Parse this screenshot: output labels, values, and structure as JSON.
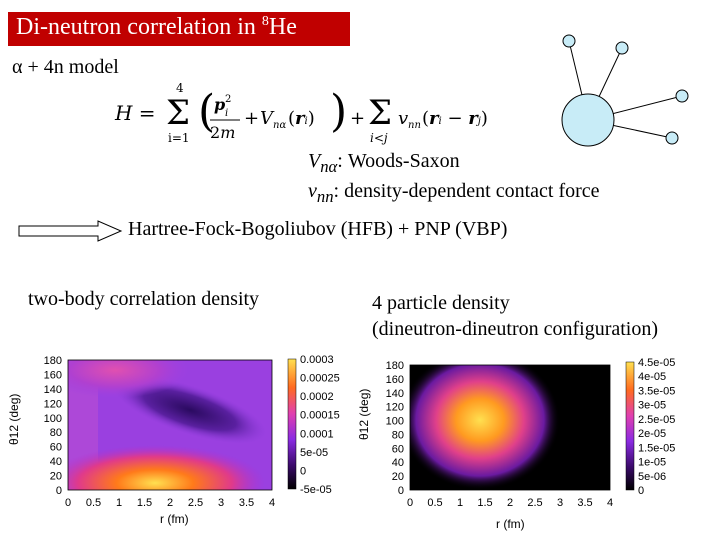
{
  "title": {
    "main": "Di-neutron correlation in ",
    "sup": "8",
    "tail": "He"
  },
  "model": "α + 4n model",
  "hamiltonian": {
    "lhs": "H =",
    "sum_top": "4",
    "sum_bottom": "i=1",
    "sum2_bottom": "i<j"
  },
  "potentials": {
    "vna_sym": "V",
    "vna_sub": "nα",
    "vna_desc": ": Woods-Saxon",
    "vnn_sym": "v",
    "vnn_sub": "nn",
    "vnn_desc": ": density-dependent contact force"
  },
  "method": "Hartree-Fock-Bogoliubov (HFB) + PNP (VBP)",
  "left_label": "two-body correlation density",
  "right_label_line1": "4 particle density",
  "right_label_line2": "(dineutron-dineutron configuration)",
  "colors": {
    "title_bg": "#c00000",
    "core": "#c8ecf7"
  },
  "chart_data": [
    {
      "type": "heatmap",
      "title": "",
      "xlabel": "r (fm)",
      "ylabel": "θ12 (deg)",
      "xlim": [
        0,
        4
      ],
      "ylim": [
        0,
        180
      ],
      "xticks": [
        "0",
        "0.5",
        "1",
        "1.5",
        "2",
        "2.5",
        "3",
        "3.5",
        "4"
      ],
      "yticks": [
        "0",
        "20",
        "40",
        "60",
        "80",
        "100",
        "120",
        "140",
        "160",
        "180"
      ],
      "colorbar_ticks": [
        "-5e-05",
        "0",
        "5e-05",
        "0.0001",
        "0.00015",
        "0.0002",
        "0.00025",
        "0.0003"
      ],
      "colorbar_range": [
        -5e-05,
        0.0003
      ],
      "peaks": [
        {
          "r": 1.5,
          "theta": 15,
          "value": 0.00028
        },
        {
          "r": 1.2,
          "theta": 160,
          "value": 0.00012
        }
      ]
    },
    {
      "type": "heatmap",
      "title": "",
      "xlabel": "r (fm)",
      "ylabel": "θ12 (deg)",
      "xlim": [
        0,
        4
      ],
      "ylim": [
        0,
        180
      ],
      "xticks": [
        "0",
        "0.5",
        "1",
        "1.5",
        "2",
        "2.5",
        "3",
        "3.5",
        "4"
      ],
      "yticks": [
        "0",
        "20",
        "40",
        "60",
        "80",
        "100",
        "120",
        "140",
        "160",
        "180"
      ],
      "colorbar_ticks": [
        "0",
        "5e-06",
        "1e-05",
        "1.5e-05",
        "2e-05",
        "2.5e-05",
        "3e-05",
        "3.5e-05",
        "4e-05",
        "4.5e-05"
      ],
      "colorbar_range": [
        0,
        4.5e-05
      ],
      "peaks": [
        {
          "r": 1.6,
          "theta": 110,
          "value": 4.5e-05
        }
      ]
    }
  ]
}
